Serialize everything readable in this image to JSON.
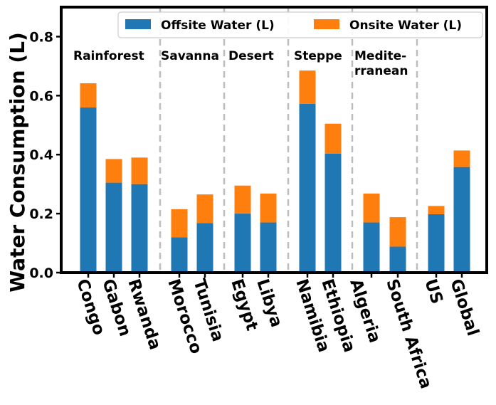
{
  "chart_data": {
    "type": "bar",
    "stacked": true,
    "title": "",
    "xlabel": "",
    "ylabel": "Water Consumption (L)",
    "ylim": [
      0,
      0.9
    ],
    "yticks": [
      "0.0",
      "0.2",
      "0.4",
      "0.6",
      "0.8"
    ],
    "categories": [
      "Congo",
      "Gabon",
      "Rwanda",
      "Morocco",
      "Tunisia",
      "Egypt",
      "Libya",
      "Namibia",
      "Ethiopia",
      "Algeria",
      "South Africa",
      "US",
      "Global"
    ],
    "series": [
      {
        "name": "Offsite Water (L)",
        "color": "#1f77b4",
        "values": [
          0.56,
          0.305,
          0.3,
          0.12,
          0.168,
          0.2,
          0.17,
          0.572,
          0.403,
          0.17,
          0.088,
          0.198,
          0.358
        ]
      },
      {
        "name": "Onsite Water (L)",
        "color": "#ff7f0e",
        "values": [
          0.082,
          0.08,
          0.09,
          0.095,
          0.097,
          0.095,
          0.098,
          0.113,
          0.102,
          0.098,
          0.1,
          0.028,
          0.056
        ]
      }
    ],
    "regions": [
      {
        "label": "Rainforest",
        "lines": [
          "Rainforest"
        ]
      },
      {
        "label": "Savanna",
        "lines": [
          "Savanna"
        ]
      },
      {
        "label": "Desert",
        "lines": [
          "Desert"
        ]
      },
      {
        "label": "Steppe",
        "lines": [
          "Steppe"
        ]
      },
      {
        "label": "Mediterranean",
        "lines": [
          "Medite-",
          "rranean"
        ]
      }
    ],
    "legend_position": "top-right",
    "grid": false
  }
}
